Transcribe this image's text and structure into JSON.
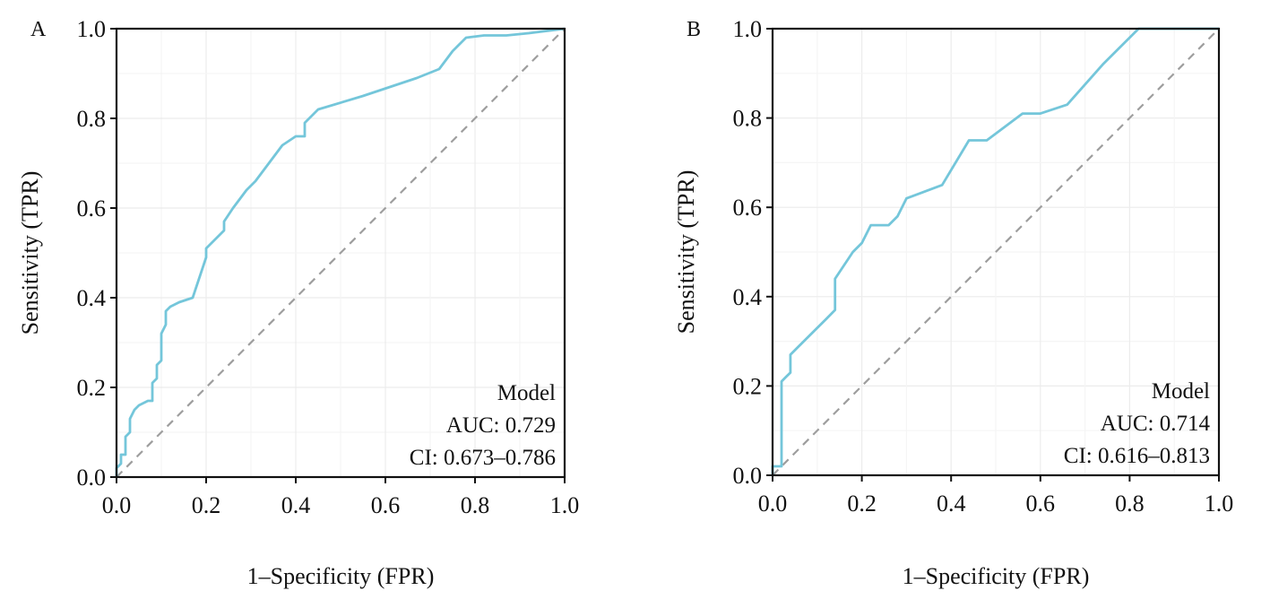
{
  "chart_data": [
    {
      "type": "line",
      "panel_label": "A",
      "xlabel": "1–Specificity (FPR)",
      "ylabel": "Sensitivity (TPR)",
      "xlim": [
        0,
        1
      ],
      "ylim": [
        0,
        1
      ],
      "xticks": [
        "0.0",
        "0.2",
        "0.4",
        "0.6",
        "0.8",
        "1.0"
      ],
      "yticks": [
        "0.0",
        "0.2",
        "0.4",
        "0.6",
        "0.8",
        "1.0"
      ],
      "grid": true,
      "line_color": "#74c6da",
      "reference_color": "#9e9e9e",
      "legend": {
        "position": "bottom-right",
        "title": "Model",
        "auc": "AUC: 0.729",
        "ci": "CI: 0.673–0.786"
      },
      "series": [
        {
          "x": [
            0.0,
            0.0,
            0.01,
            0.01,
            0.02,
            0.02,
            0.03,
            0.03,
            0.04,
            0.05,
            0.07,
            0.08,
            0.08,
            0.09,
            0.09,
            0.1,
            0.1,
            0.11,
            0.11,
            0.12,
            0.14,
            0.17,
            0.2,
            0.2,
            0.21,
            0.24,
            0.24,
            0.26,
            0.29,
            0.3,
            0.31,
            0.34,
            0.37,
            0.4,
            0.42,
            0.42,
            0.45,
            0.55,
            0.67,
            0.72,
            0.75,
            0.78,
            0.82,
            0.87,
            0.92,
            1.0
          ],
          "y": [
            0.0,
            0.02,
            0.03,
            0.05,
            0.05,
            0.09,
            0.1,
            0.13,
            0.15,
            0.16,
            0.17,
            0.17,
            0.21,
            0.22,
            0.25,
            0.26,
            0.32,
            0.34,
            0.37,
            0.38,
            0.39,
            0.4,
            0.49,
            0.51,
            0.52,
            0.55,
            0.57,
            0.6,
            0.64,
            0.65,
            0.66,
            0.7,
            0.74,
            0.76,
            0.76,
            0.79,
            0.82,
            0.85,
            0.89,
            0.91,
            0.95,
            0.98,
            0.985,
            0.985,
            0.99,
            1.0
          ]
        }
      ]
    },
    {
      "type": "line",
      "panel_label": "B",
      "xlabel": "1–Specificity (FPR)",
      "ylabel": "Sensitivity (TPR)",
      "xlim": [
        0,
        1
      ],
      "ylim": [
        0,
        1
      ],
      "xticks": [
        "0.0",
        "0.2",
        "0.4",
        "0.6",
        "0.8",
        "1.0"
      ],
      "yticks": [
        "0.0",
        "0.2",
        "0.4",
        "0.6",
        "0.8",
        "1.0"
      ],
      "grid": true,
      "line_color": "#74c6da",
      "reference_color": "#9e9e9e",
      "legend": {
        "position": "bottom-right",
        "title": "Model",
        "auc": "AUC: 0.714",
        "ci": "CI: 0.616–0.813"
      },
      "series": [
        {
          "x": [
            0.0,
            0.0,
            0.02,
            0.02,
            0.03,
            0.04,
            0.04,
            0.08,
            0.12,
            0.14,
            0.14,
            0.18,
            0.2,
            0.22,
            0.26,
            0.28,
            0.3,
            0.38,
            0.44,
            0.48,
            0.56,
            0.6,
            0.66,
            0.74,
            0.82,
            1.0
          ],
          "y": [
            0.0,
            0.02,
            0.02,
            0.21,
            0.22,
            0.23,
            0.27,
            0.31,
            0.35,
            0.37,
            0.44,
            0.5,
            0.52,
            0.56,
            0.56,
            0.58,
            0.62,
            0.65,
            0.75,
            0.75,
            0.81,
            0.81,
            0.83,
            0.92,
            1.0,
            1.0
          ]
        }
      ]
    }
  ]
}
